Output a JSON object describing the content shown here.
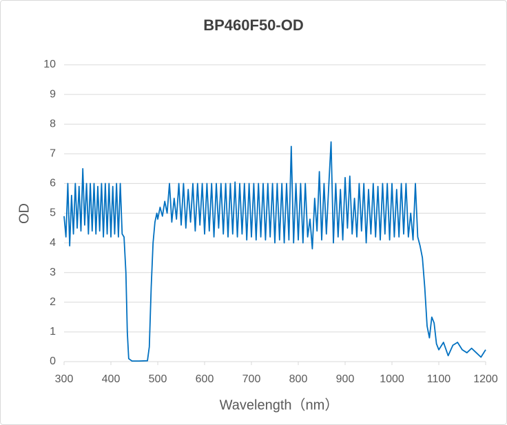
{
  "chart_data": {
    "type": "line",
    "title": "BP460F50-OD",
    "xlabel": "Wavelength（nm）",
    "ylabel": "OD",
    "color": "#0070c0",
    "grid": true,
    "xlim": [
      300,
      1200
    ],
    "xticks": [
      300,
      400,
      500,
      600,
      700,
      800,
      900,
      1000,
      1100,
      1200
    ],
    "ylim": [
      0,
      10
    ],
    "yticks": [
      0,
      1,
      2,
      3,
      4,
      5,
      6,
      7,
      8,
      9,
      10
    ],
    "x": [
      300,
      304,
      308,
      312,
      316,
      320,
      324,
      328,
      332,
      336,
      340,
      344,
      348,
      352,
      356,
      360,
      364,
      368,
      372,
      376,
      380,
      384,
      388,
      392,
      396,
      400,
      404,
      408,
      412,
      416,
      420,
      424,
      428,
      432,
      435,
      438,
      445,
      460,
      478,
      482,
      486,
      490,
      494,
      498,
      500,
      505,
      510,
      515,
      520,
      525,
      530,
      535,
      540,
      545,
      550,
      555,
      560,
      565,
      570,
      575,
      580,
      585,
      590,
      595,
      600,
      605,
      610,
      615,
      620,
      625,
      630,
      635,
      640,
      645,
      650,
      655,
      660,
      665,
      670,
      675,
      680,
      685,
      690,
      695,
      700,
      705,
      710,
      715,
      720,
      725,
      730,
      735,
      740,
      745,
      750,
      755,
      760,
      765,
      770,
      775,
      780,
      785,
      790,
      795,
      800,
      805,
      810,
      815,
      820,
      825,
      830,
      835,
      840,
      845,
      850,
      855,
      860,
      865,
      870,
      875,
      880,
      885,
      890,
      895,
      900,
      905,
      910,
      915,
      920,
      925,
      930,
      935,
      940,
      945,
      950,
      955,
      960,
      965,
      970,
      975,
      980,
      985,
      990,
      995,
      1000,
      1005,
      1010,
      1015,
      1020,
      1025,
      1030,
      1035,
      1040,
      1045,
      1050,
      1055,
      1060,
      1065,
      1070,
      1075,
      1080,
      1085,
      1090,
      1095,
      1100,
      1110,
      1120,
      1130,
      1140,
      1150,
      1160,
      1170,
      1180,
      1190,
      1200
    ],
    "values": [
      4.9,
      4.2,
      6.0,
      3.9,
      5.6,
      4.3,
      6.0,
      4.5,
      5.9,
      4.4,
      6.5,
      4.6,
      6.0,
      4.3,
      6.0,
      4.4,
      6.0,
      4.3,
      5.9,
      4.4,
      6.0,
      4.2,
      6.0,
      4.3,
      6.0,
      4.2,
      5.9,
      4.3,
      6.0,
      4.2,
      6.0,
      4.3,
      4.2,
      3.0,
      1.0,
      0.1,
      0.02,
      0.02,
      0.03,
      0.5,
      2.5,
      4.0,
      4.7,
      5.0,
      4.8,
      5.2,
      4.9,
      5.4,
      5.0,
      6.0,
      4.7,
      5.5,
      4.8,
      6.0,
      4.6,
      6.0,
      4.5,
      5.8,
      4.7,
      6.0,
      4.4,
      6.0,
      4.6,
      6.0,
      4.3,
      6.0,
      4.4,
      6.0,
      4.2,
      6.0,
      4.5,
      6.0,
      4.3,
      6.0,
      4.2,
      6.0,
      4.3,
      6.05,
      4.2,
      6.0,
      4.3,
      6.0,
      4.1,
      6.0,
      4.2,
      6.0,
      4.1,
      6.0,
      4.2,
      6.0,
      4.1,
      6.0,
      4.2,
      6.0,
      4.0,
      6.0,
      4.1,
      6.0,
      4.0,
      6.0,
      4.1,
      7.25,
      4.0,
      6.0,
      4.1,
      6.0,
      4.0,
      6.0,
      4.2,
      4.8,
      3.8,
      5.5,
      4.4,
      6.4,
      4.1,
      6.0,
      4.3,
      5.9,
      7.4,
      4.0,
      6.0,
      4.2,
      5.8,
      4.1,
      6.2,
      4.5,
      6.25,
      4.3,
      5.5,
      4.2,
      6.0,
      4.4,
      6.0,
      4.0,
      5.8,
      4.3,
      6.0,
      4.2,
      5.9,
      4.1,
      6.0,
      4.3,
      6.0,
      4.1,
      6.0,
      4.2,
      5.8,
      4.2,
      6.0,
      4.3,
      6.0,
      4.2,
      5.0,
      4.1,
      6.0,
      4.2,
      3.9,
      3.5,
      2.5,
      1.2,
      0.8,
      1.5,
      1.3,
      0.6,
      0.4,
      0.65,
      0.2,
      0.55,
      0.65,
      0.4,
      0.3,
      0.45,
      0.3,
      0.15,
      0.4
    ]
  }
}
